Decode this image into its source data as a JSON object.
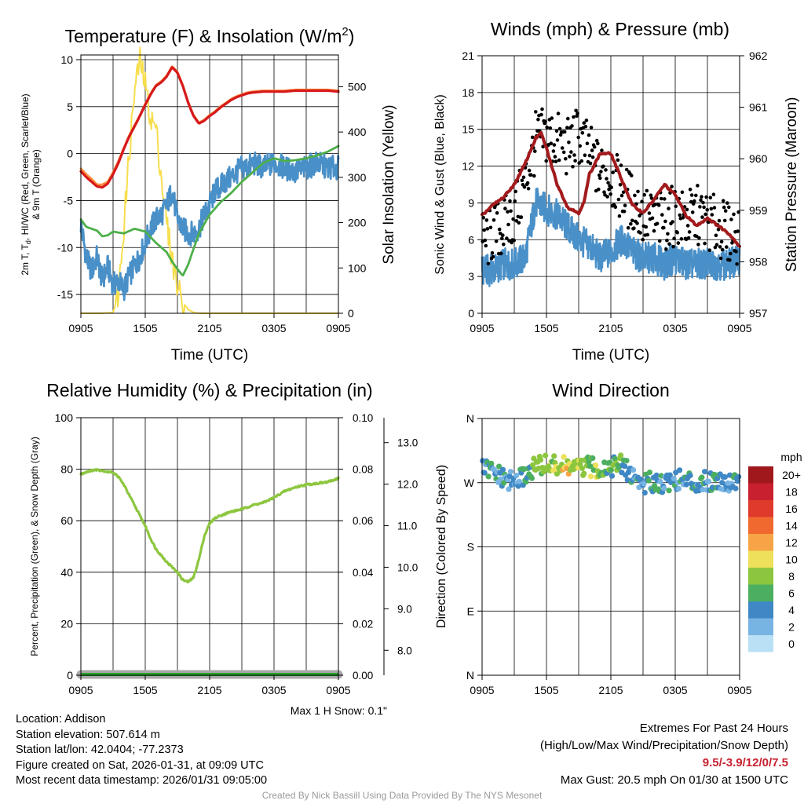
{
  "colors": {
    "temp_red": "#d7191c",
    "temp_orange": "#fd8d3c",
    "solar_yellow": "#f7de4d",
    "dewpoint_green": "#4daf4a",
    "windchill_blue": "#4a90c8",
    "gust_black": "#000000",
    "wind_blue": "#4a90c8",
    "pressure_maroon": "#a31a1d",
    "humidity_green": "#8dc63f",
    "precip_green": "#2ca02c",
    "snow_gray": "#a8a8a8",
    "credit_gray": "#9a9a9a",
    "extremes_red": "#c8202e"
  },
  "chart_data": [
    {
      "id": "temperature",
      "type": "line",
      "title": "Temperature (F) & Insolation (W/m",
      "title_sup": "2",
      "title_close": ")",
      "xlabel": "Time (UTC)",
      "ylabel_line1": "2m T, T",
      "ylabel_sub": "d",
      "ylabel_line1_rest": ", HI/WC (Red, Green, Scarlet/Blue)",
      "ylabel_line2": "& 9m T (Orange)",
      "y2label": "Solar Insolation (Yellow)",
      "x_ticks": [
        "0905",
        "1505",
        "2105",
        "0305",
        "0905"
      ],
      "ylim": [
        -17,
        10.5
      ],
      "y_ticks": [
        -15,
        -10,
        -5,
        0,
        5,
        10
      ],
      "y2lim": [
        0,
        570
      ],
      "y2_ticks": [
        0,
        100,
        200,
        300,
        400,
        500
      ],
      "series": [
        {
          "name": "2m Temperature",
          "color": "red",
          "x": [
            0,
            0.5,
            1,
            1.5,
            2,
            2.5,
            3,
            3.5,
            4,
            4.5,
            5,
            5.5,
            6,
            6.5,
            7,
            7.5,
            8,
            8.5,
            9,
            9.5,
            10,
            10.5,
            11,
            11.5,
            12,
            12.5,
            13,
            13.5,
            14,
            14.5,
            15,
            15.5,
            16,
            17,
            18,
            19,
            20,
            21,
            22,
            23,
            24
          ],
          "values": [
            -1.9,
            -2.5,
            -3.0,
            -3.5,
            -3.6,
            -3.2,
            -2.2,
            -1.0,
            0.5,
            1.8,
            2.9,
            4.0,
            5.2,
            6.3,
            7.2,
            7.6,
            8.2,
            9.2,
            8.6,
            7.2,
            5.4,
            4.0,
            3.2,
            3.5,
            4.0,
            4.4,
            4.9,
            5.3,
            5.7,
            6.0,
            6.2,
            6.4,
            6.5,
            6.6,
            6.6,
            6.6,
            6.7,
            6.7,
            6.7,
            6.7,
            6.6
          ]
        },
        {
          "name": "9m Temperature",
          "color": "orange",
          "x": [
            0,
            0.5,
            1,
            1.5,
            2,
            2.5,
            3,
            3.5,
            4,
            4.5,
            5,
            5.5,
            6,
            6.5,
            7,
            7.5,
            8,
            8.5,
            9,
            9.5,
            10,
            10.5,
            11,
            11.5,
            12,
            12.5,
            13,
            13.5,
            14,
            14.5,
            15,
            15.5,
            16,
            17,
            18,
            19,
            20,
            21,
            22,
            23,
            24
          ],
          "values": [
            -1.6,
            -2.2,
            -2.7,
            -3.3,
            -3.3,
            -3.0,
            -2.0,
            -0.8,
            0.6,
            1.9,
            3.0,
            4.1,
            5.3,
            6.4,
            7.3,
            7.7,
            8.3,
            9.3,
            8.7,
            7.3,
            5.5,
            4.1,
            3.3,
            3.6,
            4.1,
            4.5,
            5.0,
            5.4,
            5.8,
            6.1,
            6.3,
            6.5,
            6.6,
            6.7,
            6.7,
            6.7,
            6.8,
            6.8,
            6.8,
            6.8,
            6.7
          ]
        },
        {
          "name": "Dew Point",
          "color": "green",
          "x": [
            0,
            0.5,
            1,
            1.5,
            2,
            2.5,
            3,
            4,
            5,
            6,
            7,
            8,
            8.5,
            9,
            9.5,
            10,
            11,
            12,
            13,
            14,
            15,
            16,
            17,
            18,
            19,
            20,
            21,
            22,
            23,
            24
          ],
          "values": [
            -7.0,
            -7.8,
            -8.0,
            -8.2,
            -8.8,
            -8.7,
            -8.3,
            -8.5,
            -8.0,
            -8.3,
            -9.5,
            -10.5,
            -11.5,
            -12.3,
            -13.0,
            -11.8,
            -8.5,
            -6.5,
            -5.2,
            -4.2,
            -3.0,
            -2.0,
            -1.0,
            -0.5,
            -0.8,
            -0.7,
            -0.5,
            -0.2,
            0.2,
            0.8
          ]
        },
        {
          "name": "Wind Chill",
          "color": "blue",
          "x": [
            0,
            0.5,
            1,
            1.5,
            2,
            2.5,
            3,
            3.5,
            4,
            4.5,
            5,
            5.5,
            6,
            6.5,
            7,
            7.5,
            8,
            8.5,
            9,
            9.5,
            10,
            10.5,
            11,
            11.5,
            12,
            12.5,
            13,
            13.5,
            14,
            14.5,
            15,
            15.5,
            16,
            17,
            18,
            19,
            20,
            21,
            22,
            23,
            24
          ],
          "values": [
            -7.5,
            -11.0,
            -12.5,
            -11.0,
            -13.5,
            -12.0,
            -14.0,
            -13.5,
            -14.5,
            -13.0,
            -12.0,
            -11.0,
            -9.5,
            -8.0,
            -7.0,
            -6.5,
            -5.5,
            -4.0,
            -7.0,
            -8.0,
            -8.5,
            -8.5,
            -8.0,
            -6.5,
            -5.5,
            -4.0,
            -3.5,
            -3.0,
            -2.5,
            -2.0,
            -1.5,
            -1.5,
            -1.0,
            -1.5,
            -1.0,
            -1.5,
            -2.0,
            -1.5,
            -1.0,
            -1.5,
            -1.5
          ]
        },
        {
          "name": "Solar Insolation",
          "color": "yellow",
          "axis": "y2",
          "x": [
            0,
            2,
            3,
            3.5,
            4,
            4.5,
            5,
            5.5,
            6,
            6.5,
            7,
            7.5,
            8,
            8.5,
            9,
            9.5,
            10,
            10.5,
            11,
            12,
            14,
            16,
            18,
            20,
            22,
            24
          ],
          "values": [
            0,
            0,
            2,
            40,
            190,
            350,
            490,
            560,
            505,
            430,
            410,
            300,
            200,
            120,
            60,
            25,
            8,
            2,
            0,
            0,
            0,
            0,
            0,
            0,
            0,
            0
          ]
        }
      ]
    },
    {
      "id": "winds",
      "type": "line+scatter",
      "title": "Winds (mph) & Pressure (mb)",
      "xlabel": "Time (UTC)",
      "ylabel": "Sonic Wind & Gust (Blue, Black)",
      "y2label": "Station Pressure (Maroon)",
      "x_ticks": [
        "0905",
        "1505",
        "2105",
        "0305",
        "0905"
      ],
      "ylim": [
        0,
        21
      ],
      "y_ticks": [
        0,
        3,
        6,
        9,
        12,
        15,
        18,
        21
      ],
      "y2lim": [
        957,
        962
      ],
      "y2_ticks": [
        957,
        958,
        959,
        960,
        961,
        962
      ],
      "series": [
        {
          "name": "Sonic Wind",
          "color": "blue",
          "x": [
            0,
            1,
            2,
            3,
            4,
            5,
            6,
            7,
            8,
            9,
            10,
            11,
            12,
            13,
            14,
            15,
            16,
            17,
            18,
            19,
            20,
            21,
            22,
            23,
            24
          ],
          "values": [
            3.5,
            3.5,
            4.0,
            4.0,
            4.5,
            9.0,
            8.5,
            8.0,
            7.0,
            6.0,
            5.5,
            4.5,
            5.0,
            6.0,
            5.0,
            4.5,
            4.5,
            4.0,
            4.5,
            4.0,
            4.0,
            4.0,
            4.0,
            4.0,
            4.5
          ]
        },
        {
          "name": "Gust",
          "color": "black",
          "marker": "dot",
          "x": [
            0,
            1,
            2,
            3,
            4,
            5,
            6,
            7,
            8,
            9,
            10,
            11,
            12,
            13,
            14,
            15,
            16,
            17,
            18,
            19,
            20,
            21,
            22,
            23,
            24
          ],
          "values": [
            5.5,
            6.5,
            7.0,
            8.0,
            10.5,
            14.0,
            14.5,
            14.0,
            13.5,
            14.5,
            13.0,
            11.5,
            11.0,
            10.0,
            9.0,
            8.0,
            7.5,
            7.5,
            8.0,
            7.5,
            8.0,
            7.5,
            7.0,
            6.5,
            6.5
          ]
        },
        {
          "name": "Station Pressure",
          "color": "maroon",
          "axis": "y2",
          "x": [
            0,
            0.5,
            1,
            2,
            3,
            4,
            5,
            5.5,
            6,
            7,
            8,
            9,
            9.5,
            10,
            11,
            12,
            13,
            14,
            15,
            16,
            17,
            18,
            19,
            20,
            21,
            22,
            23,
            24
          ],
          "values": [
            958.9,
            959.0,
            959.1,
            959.25,
            959.5,
            959.9,
            960.4,
            960.5,
            960.2,
            959.5,
            959.05,
            958.95,
            959.15,
            959.7,
            960.1,
            960.1,
            959.6,
            959.1,
            958.95,
            959.2,
            959.5,
            959.3,
            958.9,
            958.7,
            958.85,
            958.7,
            958.55,
            958.3
          ]
        }
      ]
    },
    {
      "id": "humidity",
      "type": "line",
      "title": "Relative Humidity (%) & Precipitation (in)",
      "ylabel": "Percent, Precipitation (Green), & Snow Depth (Gray)",
      "x_ticks": [
        "0905",
        "1505",
        "2105",
        "0305",
        "0905"
      ],
      "ylim": [
        0,
        100
      ],
      "y_ticks": [
        0,
        20,
        40,
        60,
        80,
        100
      ],
      "y2lim": [
        0,
        0.1
      ],
      "y2_ticks": [
        "0.00",
        "0.02",
        "0.04",
        "0.06",
        "0.08",
        "0.10"
      ],
      "y3lim": [
        7.4,
        13.6
      ],
      "y3_ticks": [
        "8.0",
        "9.0",
        "10.0",
        "11.0",
        "12.0",
        "13.0"
      ],
      "snow_note": "Max 1 H Snow: 0.1\"",
      "series": [
        {
          "name": "Relative Humidity",
          "color": "green",
          "x": [
            0,
            0.5,
            1,
            1.5,
            2,
            2.5,
            3,
            3.5,
            4,
            4.5,
            5,
            5.5,
            6,
            6.5,
            7,
            7.5,
            8,
            8.5,
            9,
            9.5,
            10,
            10.5,
            11,
            11.5,
            12,
            12.5,
            13,
            14,
            15,
            16,
            17,
            18,
            19,
            20,
            21,
            22,
            23,
            24
          ],
          "values": [
            78.0,
            79.0,
            79.5,
            79.8,
            79.5,
            79.0,
            78.8,
            77.0,
            74.0,
            70.0,
            66.0,
            62.0,
            58.0,
            53.0,
            49.0,
            46.5,
            44.0,
            42.0,
            40.0,
            37.0,
            36.2,
            38.0,
            45.0,
            54.0,
            59.0,
            61.0,
            62.0,
            63.5,
            64.5,
            66.0,
            67.0,
            69.0,
            71.5,
            73.0,
            74.0,
            74.5,
            75.0,
            76.5
          ]
        },
        {
          "name": "Precipitation",
          "color": "precip_green",
          "axis": "y2",
          "x": [
            0,
            24
          ],
          "values": [
            0,
            0
          ]
        },
        {
          "name": "Snow Depth",
          "color": "gray",
          "axis": "y3",
          "x": [
            0,
            24
          ],
          "values": [
            7.4,
            7.4
          ]
        }
      ]
    },
    {
      "id": "direction",
      "type": "scatter",
      "title": "Wind Direction",
      "ylabel": "Direction (Colored By Speed)",
      "x_ticks": [
        "0905",
        "1505",
        "2105",
        "0305",
        "0905"
      ],
      "y_tick_labels": [
        "N",
        "E",
        "S",
        "W",
        "N"
      ],
      "ylim": [
        0,
        360
      ],
      "colorbar_title": "mph",
      "colorbar_labels": [
        "20+",
        "18",
        "16",
        "14",
        "12",
        "10",
        "8",
        "6",
        "4",
        "2",
        "0"
      ],
      "colorbar_colors": [
        "#a0181c",
        "#c8202e",
        "#e03a2c",
        "#f06a30",
        "#f7a446",
        "#eee05a",
        "#8cc63f",
        "#4caf60",
        "#3f88c5",
        "#78b4e3",
        "#b9e0f5"
      ],
      "series": [
        {
          "name": "Direction",
          "x": [
            0,
            1,
            2,
            3,
            4,
            5,
            6,
            7,
            8,
            9,
            10,
            11,
            12,
            13,
            14,
            15,
            16,
            17,
            18,
            19,
            20,
            21,
            22,
            23,
            24
          ],
          "values": [
            290,
            285,
            275,
            270,
            280,
            293,
            295,
            293,
            292,
            290,
            292,
            290,
            293,
            295,
            280,
            268,
            272,
            270,
            275,
            272,
            270,
            272,
            275,
            270,
            278
          ],
          "speeds": [
            4,
            4,
            4,
            3,
            5,
            7,
            8,
            9,
            10,
            8,
            8,
            7,
            6,
            6,
            4,
            4,
            4,
            4,
            4,
            4,
            4,
            4,
            4,
            4,
            4
          ]
        }
      ]
    }
  ],
  "info": {
    "location": "Location: Addison",
    "elevation": "Station elevation: 507.614 m",
    "latlon": "Station lat/lon: 42.0404; -77.2373",
    "created": "Figure created on Sat, 2026-01-31, at 09:09 UTC",
    "recent": "Most recent data timestamp: 2026/01/31 09:05:00"
  },
  "extremes": {
    "title": "Extremes For Past 24 Hours",
    "subtitle": "(High/Low/Max Wind/Precipitation/Snow Depth)",
    "values": "9.5/-3.9/12/0/7.5",
    "max_gust": "Max Gust: 20.5 mph On 01/30 at 1500 UTC"
  },
  "credit": "Created By Nick Bassill Using Data Provided By The NYS Mesonet"
}
